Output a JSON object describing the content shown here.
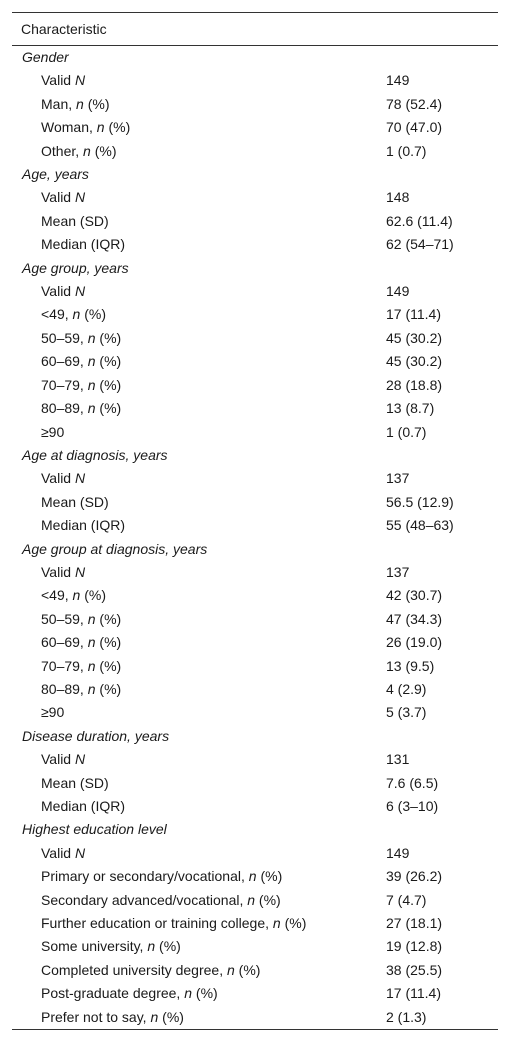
{
  "header": "Characteristic",
  "groups": [
    {
      "title": "Gender",
      "rows": [
        {
          "label": "Valid ",
          "unit": "N",
          "suffix": "",
          "value": "149"
        },
        {
          "label": "Man, ",
          "unit": "n",
          "suffix": " (%)",
          "value": "78 (52.4)"
        },
        {
          "label": "Woman, ",
          "unit": "n",
          "suffix": " (%)",
          "value": "70 (47.0)"
        },
        {
          "label": "Other, ",
          "unit": "n",
          "suffix": " (%)",
          "value": "1 (0.7)"
        }
      ]
    },
    {
      "title": "Age, years",
      "rows": [
        {
          "label": "Valid ",
          "unit": "N",
          "suffix": "",
          "value": "148"
        },
        {
          "label": "Mean (SD)",
          "unit": "",
          "suffix": "",
          "value": "62.6 (11.4)"
        },
        {
          "label": "Median (IQR)",
          "unit": "",
          "suffix": "",
          "value": "62 (54–71)"
        }
      ]
    },
    {
      "title": "Age group, years",
      "rows": [
        {
          "label": "Valid ",
          "unit": "N",
          "suffix": "",
          "value": "149"
        },
        {
          "label": "<49, ",
          "unit": "n",
          "suffix": " (%)",
          "value": "17 (11.4)"
        },
        {
          "label": "50–59, ",
          "unit": "n",
          "suffix": " (%)",
          "value": "45 (30.2)"
        },
        {
          "label": "60–69, ",
          "unit": "n",
          "suffix": " (%)",
          "value": "45 (30.2)"
        },
        {
          "label": "70–79, ",
          "unit": "n",
          "suffix": " (%)",
          "value": "28 (18.8)"
        },
        {
          "label": "80–89, ",
          "unit": "n",
          "suffix": " (%)",
          "value": "13 (8.7)"
        },
        {
          "label": "≥90",
          "unit": "",
          "suffix": "",
          "value": "1 (0.7)"
        }
      ]
    },
    {
      "title": "Age at diagnosis, years",
      "rows": [
        {
          "label": "Valid ",
          "unit": "N",
          "suffix": "",
          "value": "137"
        },
        {
          "label": "Mean (SD)",
          "unit": "",
          "suffix": "",
          "value": "56.5 (12.9)"
        },
        {
          "label": "Median (IQR)",
          "unit": "",
          "suffix": "",
          "value": "55 (48–63)"
        }
      ]
    },
    {
      "title": "Age group at diagnosis, years",
      "rows": [
        {
          "label": "Valid ",
          "unit": "N",
          "suffix": "",
          "value": "137"
        },
        {
          "label": "<49, ",
          "unit": "n",
          "suffix": " (%)",
          "value": "42 (30.7)"
        },
        {
          "label": "50–59, ",
          "unit": "n",
          "suffix": " (%)",
          "value": "47 (34.3)"
        },
        {
          "label": "60–69, ",
          "unit": "n",
          "suffix": " (%)",
          "value": "26 (19.0)"
        },
        {
          "label": "70–79, ",
          "unit": "n",
          "suffix": " (%)",
          "value": "13 (9.5)"
        },
        {
          "label": "80–89, ",
          "unit": "n",
          "suffix": " (%)",
          "value": "4 (2.9)"
        },
        {
          "label": "≥90",
          "unit": "",
          "suffix": "",
          "value": "5 (3.7)"
        }
      ]
    },
    {
      "title": "Disease duration, years",
      "rows": [
        {
          "label": "Valid ",
          "unit": "N",
          "suffix": "",
          "value": "131"
        },
        {
          "label": "Mean (SD)",
          "unit": "",
          "suffix": "",
          "value": "7.6 (6.5)"
        },
        {
          "label": "Median (IQR)",
          "unit": "",
          "suffix": "",
          "value": "6 (3–10)"
        }
      ]
    },
    {
      "title": "Highest education level",
      "rows": [
        {
          "label": "Valid ",
          "unit": "N",
          "suffix": "",
          "value": "149"
        },
        {
          "label": "Primary or secondary/vocational, ",
          "unit": "n",
          "suffix": " (%)",
          "value": "39 (26.2)"
        },
        {
          "label": "Secondary advanced/vocational, ",
          "unit": "n",
          "suffix": " (%)",
          "value": "7 (4.7)"
        },
        {
          "label": "Further education or training college, ",
          "unit": "n",
          "suffix": " (%)",
          "value": "27 (18.1)"
        },
        {
          "label": "Some university, ",
          "unit": "n",
          "suffix": " (%)",
          "value": "19 (12.8)"
        },
        {
          "label": "Completed university degree, ",
          "unit": "n",
          "suffix": " (%)",
          "value": "38 (25.5)"
        },
        {
          "label": "Post-graduate degree, ",
          "unit": "n",
          "suffix": " (%)",
          "value": "17 (11.4)"
        },
        {
          "label": "Prefer not to say, ",
          "unit": "n",
          "suffix": " (%)",
          "value": "2 (1.3)"
        }
      ]
    }
  ]
}
